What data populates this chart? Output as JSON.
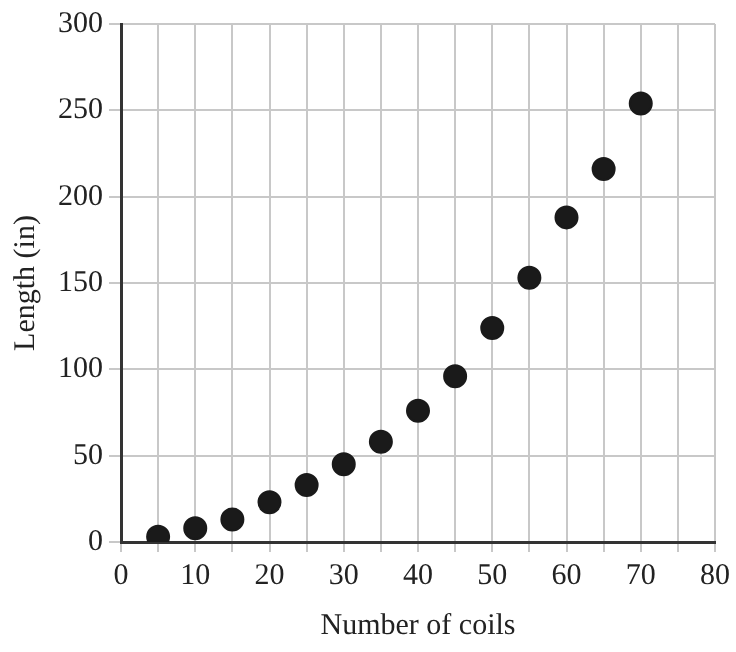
{
  "chart_data": {
    "type": "scatter",
    "xlabel": "Number of coils",
    "ylabel": "Length (in)",
    "x": [
      5,
      10,
      15,
      20,
      25,
      30,
      35,
      40,
      45,
      50,
      55,
      60,
      65,
      70
    ],
    "values": [
      3,
      8,
      13,
      23,
      33,
      45,
      58,
      76,
      96,
      124,
      153,
      188,
      216,
      254
    ],
    "color": "#1a1a1a",
    "marker": "circle",
    "grid": true,
    "legend": false,
    "xlim": [
      0,
      80
    ],
    "ylim": [
      0,
      300
    ],
    "xticks": [
      0,
      {
        "value": 5,
        "label": null
      },
      10,
      {
        "value": 15,
        "label": null
      },
      20,
      {
        "value": 25,
        "label": null
      },
      30,
      {
        "value": 35,
        "label": null
      },
      40,
      {
        "value": 45,
        "label": null
      },
      50,
      {
        "value": 55,
        "label": null
      },
      60,
      {
        "value": 65,
        "label": null
      },
      70,
      {
        "value": 75,
        "label": null
      },
      80
    ],
    "yticks": [
      0,
      50,
      100,
      150,
      200,
      250,
      300
    ]
  }
}
